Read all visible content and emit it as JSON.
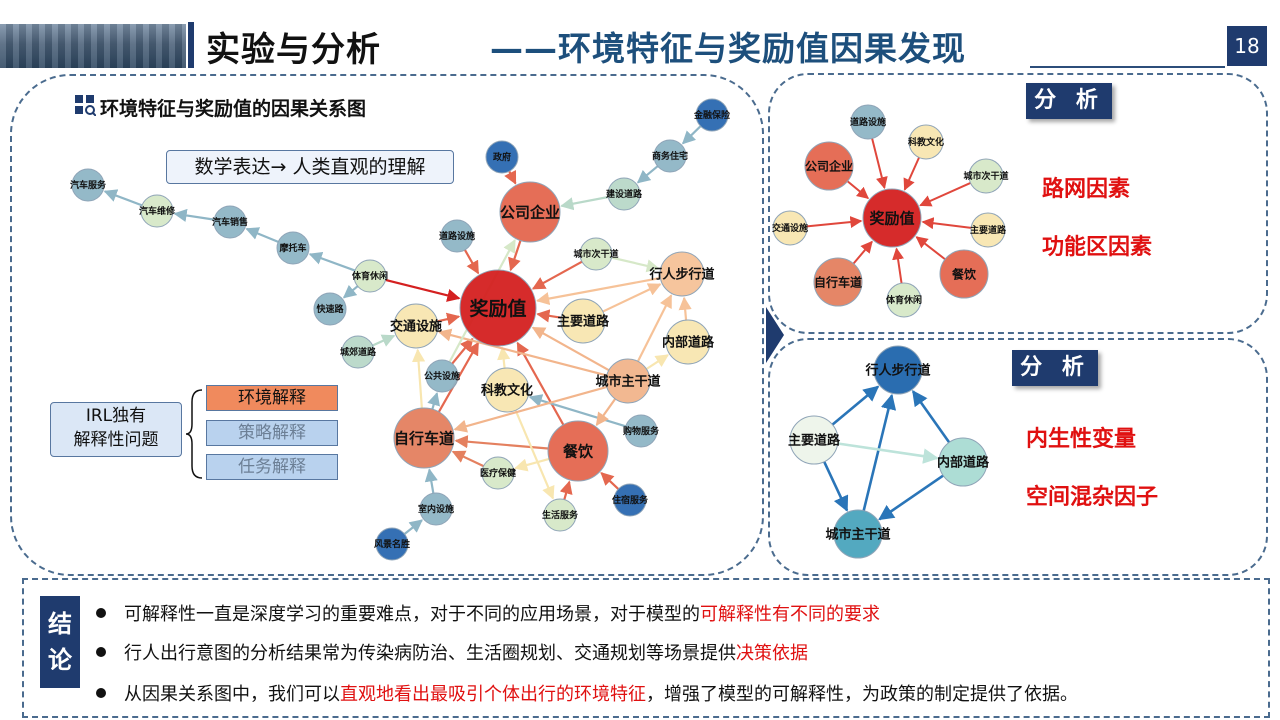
{
  "header": {
    "title": "实验与分析",
    "subtitle": "——环境特征与奖励值因果发现",
    "page_number": "18"
  },
  "main": {
    "heading": "环境特征与奖励值的因果关系图",
    "math_box": "数学表达→ 人类直观的理解",
    "irl_box": [
      "IRL独有",
      "解释性问题"
    ],
    "chips": [
      "环境解释",
      "策略解释",
      "任务解释"
    ],
    "graph": {
      "nodes": [
        {
          "id": "reward",
          "label": "奖励值",
          "color": "#d42020",
          "size": "xl"
        },
        {
          "id": "company",
          "label": "公司企业",
          "color": "#e4674f",
          "size": "l"
        },
        {
          "id": "gov",
          "label": "政府",
          "color": "#2b69b0",
          "size": "s"
        },
        {
          "id": "finance",
          "label": "金融保险",
          "color": "#2b69b0",
          "size": "s"
        },
        {
          "id": "commercial_housing",
          "label": "商务住宅",
          "color": "#8fb6c6",
          "size": "s"
        },
        {
          "id": "construction_road",
          "label": "建设道路",
          "color": "#b9d9c9",
          "size": "s"
        },
        {
          "id": "road_facility",
          "label": "道路设施",
          "color": "#8fb6c6",
          "size": "s"
        },
        {
          "id": "city_secondary",
          "label": "城市次干道",
          "color": "#d6e8c8",
          "size": "s"
        },
        {
          "id": "pedestrian",
          "label": "行人步行道",
          "color": "#f6c298",
          "size": "m"
        },
        {
          "id": "main_road",
          "label": "主要道路",
          "color": "#f8e6b0",
          "size": "m"
        },
        {
          "id": "inner_road",
          "label": "内部道路",
          "color": "#f8e6b0",
          "size": "m"
        },
        {
          "id": "city_trunk",
          "label": "城市主干道",
          "color": "#f2b58c",
          "size": "m"
        },
        {
          "id": "traffic_facility",
          "label": "交通设施",
          "color": "#f8e6b0",
          "size": "m"
        },
        {
          "id": "sports",
          "label": "体育休闲",
          "color": "#d6e8c8",
          "size": "s"
        },
        {
          "id": "expressway",
          "label": "快速路",
          "color": "#8fb6c6",
          "size": "s"
        },
        {
          "id": "suburban_road",
          "label": "城郊道路",
          "color": "#b9d9c9",
          "size": "s"
        },
        {
          "id": "motorcycle",
          "label": "摩托车",
          "color": "#8fb6c6",
          "size": "s"
        },
        {
          "id": "car_sales",
          "label": "汽车销售",
          "color": "#8fb6c6",
          "size": "s"
        },
        {
          "id": "car_repair",
          "label": "汽车维修",
          "color": "#d6e8c8",
          "size": "s"
        },
        {
          "id": "car_service",
          "label": "汽车服务",
          "color": "#8fb6c6",
          "size": "s"
        },
        {
          "id": "public_facility",
          "label": "公共设施",
          "color": "#8fb6c6",
          "size": "s"
        },
        {
          "id": "science_culture",
          "label": "科教文化",
          "color": "#f8e6b0",
          "size": "m"
        },
        {
          "id": "bicycle",
          "label": "自行车道",
          "color": "#e4805f",
          "size": "l"
        },
        {
          "id": "catering",
          "label": "餐饮",
          "color": "#e4674f",
          "size": "l"
        },
        {
          "id": "shopping",
          "label": "购物服务",
          "color": "#8fb6c6",
          "size": "s"
        },
        {
          "id": "medical",
          "label": "医疗保健",
          "color": "#d6e8c8",
          "size": "s"
        },
        {
          "id": "accommodation",
          "label": "住宿服务",
          "color": "#2b69b0",
          "size": "s"
        },
        {
          "id": "life_service",
          "label": "生活服务",
          "color": "#d6e8c8",
          "size": "s"
        },
        {
          "id": "indoor_facility",
          "label": "室内设施",
          "color": "#8fb6c6",
          "size": "s"
        },
        {
          "id": "scenic",
          "label": "风景名胜",
          "color": "#2b69b0",
          "size": "s"
        }
      ],
      "edges": [
        {
          "from": "company",
          "to": "reward",
          "color": "#e4674f"
        },
        {
          "from": "gov",
          "to": "company",
          "color": "#e4674f"
        },
        {
          "from": "construction_road",
          "to": "company",
          "color": "#b9d9c9"
        },
        {
          "from": "commercial_housing",
          "to": "construction_road",
          "color": "#8fb6c6"
        },
        {
          "from": "finance",
          "to": "commercial_housing",
          "color": "#8fb6c6"
        },
        {
          "from": "road_facility",
          "to": "reward",
          "color": "#e4674f"
        },
        {
          "from": "city_secondary",
          "to": "reward",
          "color": "#e4674f"
        },
        {
          "from": "pedestrian",
          "to": "reward",
          "color": "#f6c298"
        },
        {
          "from": "main_road",
          "to": "reward",
          "color": "#e4674f"
        },
        {
          "from": "city_trunk",
          "to": "reward",
          "color": "#f2b58c"
        },
        {
          "from": "sports",
          "to": "reward",
          "color": "#d42020"
        },
        {
          "from": "traffic_facility",
          "to": "reward",
          "color": "#e4674f"
        },
        {
          "from": "bicycle",
          "to": "reward",
          "color": "#e4674f"
        },
        {
          "from": "catering",
          "to": "reward",
          "color": "#e4674f"
        },
        {
          "from": "science_culture",
          "to": "reward",
          "color": "#f8e6b0"
        },
        {
          "from": "public_facility",
          "to": "reward",
          "color": "#e4674f"
        },
        {
          "from": "main_road",
          "to": "pedestrian",
          "color": "#f6c298"
        },
        {
          "from": "inner_road",
          "to": "pedestrian",
          "color": "#f6c298"
        },
        {
          "from": "city_trunk",
          "to": "pedestrian",
          "color": "#f6c298"
        },
        {
          "from": "city_trunk",
          "to": "inner_road",
          "color": "#f8e6b0"
        },
        {
          "from": "city_secondary",
          "to": "pedestrian",
          "color": "#d6e8c8"
        },
        {
          "from": "city_trunk",
          "to": "traffic_facility",
          "color": "#f2b58c"
        },
        {
          "from": "sports",
          "to": "expressway",
          "color": "#8fb6c6"
        },
        {
          "from": "sports",
          "to": "motorcycle",
          "color": "#8fb6c6"
        },
        {
          "from": "motorcycle",
          "to": "car_sales",
          "color": "#8fb6c6"
        },
        {
          "from": "car_sales",
          "to": "car_repair",
          "color": "#8fb6c6"
        },
        {
          "from": "car_repair",
          "to": "car_service",
          "color": "#8fb6c6"
        },
        {
          "from": "suburban_road",
          "to": "traffic_facility",
          "color": "#b9d9c9"
        },
        {
          "from": "bicycle",
          "to": "traffic_facility",
          "color": "#f8e6b0"
        },
        {
          "from": "bicycle",
          "to": "public_facility",
          "color": "#8fb6c6"
        },
        {
          "from": "indoor_facility",
          "to": "bicycle",
          "color": "#8fb6c6"
        },
        {
          "from": "scenic",
          "to": "indoor_facility",
          "color": "#8fb6c6"
        },
        {
          "from": "medical",
          "to": "bicycle",
          "color": "#e4805f"
        },
        {
          "from": "catering",
          "to": "bicycle",
          "color": "#e4805f"
        },
        {
          "from": "life_service",
          "to": "catering",
          "color": "#e4674f"
        },
        {
          "from": "accommodation",
          "to": "catering",
          "color": "#e4674f"
        },
        {
          "from": "shopping",
          "to": "science_culture",
          "color": "#8fb6c6"
        },
        {
          "from": "science_culture",
          "to": "life_service",
          "color": "#f8e6b0"
        },
        {
          "from": "city_trunk",
          "to": "bicycle",
          "color": "#f2b58c"
        },
        {
          "from": "catering",
          "to": "medical",
          "color": "#f8e6b0"
        },
        {
          "from": "city_trunk",
          "to": "catering",
          "color": "#f2b58c"
        },
        {
          "from": "public_facility",
          "to": "company",
          "color": "#d6e8c8"
        }
      ]
    }
  },
  "analysis1": {
    "label": "分 析",
    "points": [
      "路网因素",
      "功能区因素"
    ],
    "graph": {
      "nodes": [
        {
          "id": "reward",
          "label": "奖励值",
          "color": "#d42020",
          "size": "l"
        },
        {
          "id": "road_facility",
          "label": "道路设施",
          "color": "#8fb6c6",
          "size": "s"
        },
        {
          "id": "science_culture",
          "label": "科教文化",
          "color": "#f8e6b0",
          "size": "s"
        },
        {
          "id": "company",
          "label": "公司企业",
          "color": "#e4674f",
          "size": "m"
        },
        {
          "id": "city_secondary",
          "label": "城市次干道",
          "color": "#d6e8c8",
          "size": "s"
        },
        {
          "id": "traffic_facility",
          "label": "交通设施",
          "color": "#f8e6b0",
          "size": "s"
        },
        {
          "id": "main_road",
          "label": "主要道路",
          "color": "#f8e6b0",
          "size": "s"
        },
        {
          "id": "bicycle",
          "label": "自行车道",
          "color": "#e4805f",
          "size": "m"
        },
        {
          "id": "catering",
          "label": "餐饮",
          "color": "#e4674f",
          "size": "m"
        },
        {
          "id": "sports",
          "label": "体育休闲",
          "color": "#d6e8c8",
          "size": "s"
        }
      ]
    }
  },
  "analysis2": {
    "label": "分 析",
    "points": [
      "内生性变量",
      "空间混杂因子"
    ],
    "graph": {
      "nodes": [
        {
          "id": "pedestrian",
          "label": "行人步行道",
          "color": "#1f66ac"
        },
        {
          "id": "main_road",
          "label": "主要道路",
          "color": "#eef5ea"
        },
        {
          "id": "inner_road",
          "label": "内部道路",
          "color": "#a9dcd3"
        },
        {
          "id": "city_trunk",
          "label": "城市主干道",
          "color": "#4aa5bd"
        }
      ],
      "edges": [
        {
          "from": "main_road",
          "to": "pedestrian"
        },
        {
          "from": "inner_road",
          "to": "pedestrian"
        },
        {
          "from": "city_trunk",
          "to": "pedestrian"
        },
        {
          "from": "main_road",
          "to": "city_trunk"
        },
        {
          "from": "inner_road",
          "to": "city_trunk"
        },
        {
          "from": "main_road",
          "to": "inner_road"
        }
      ]
    }
  },
  "conclusion": {
    "tag": [
      "结",
      "论"
    ],
    "bullets": [
      {
        "text": "可解释性一直是深度学习的重要难点，对于不同的应用场景，对于模型的",
        "highlight": "可解释性有不同的要求",
        "tail": ""
      },
      {
        "text": "行人出行意图的分析结果常为传染病防治、生活圈规划、交通规划等场景提供",
        "highlight": "决策依据",
        "tail": ""
      },
      {
        "text": "从因果关系图中，我们可以",
        "highlight": "直观地看出最吸引个体出行的环境特征",
        "tail": "，增强了模型的可解释性，为政策的制定提供了依据。"
      }
    ]
  }
}
